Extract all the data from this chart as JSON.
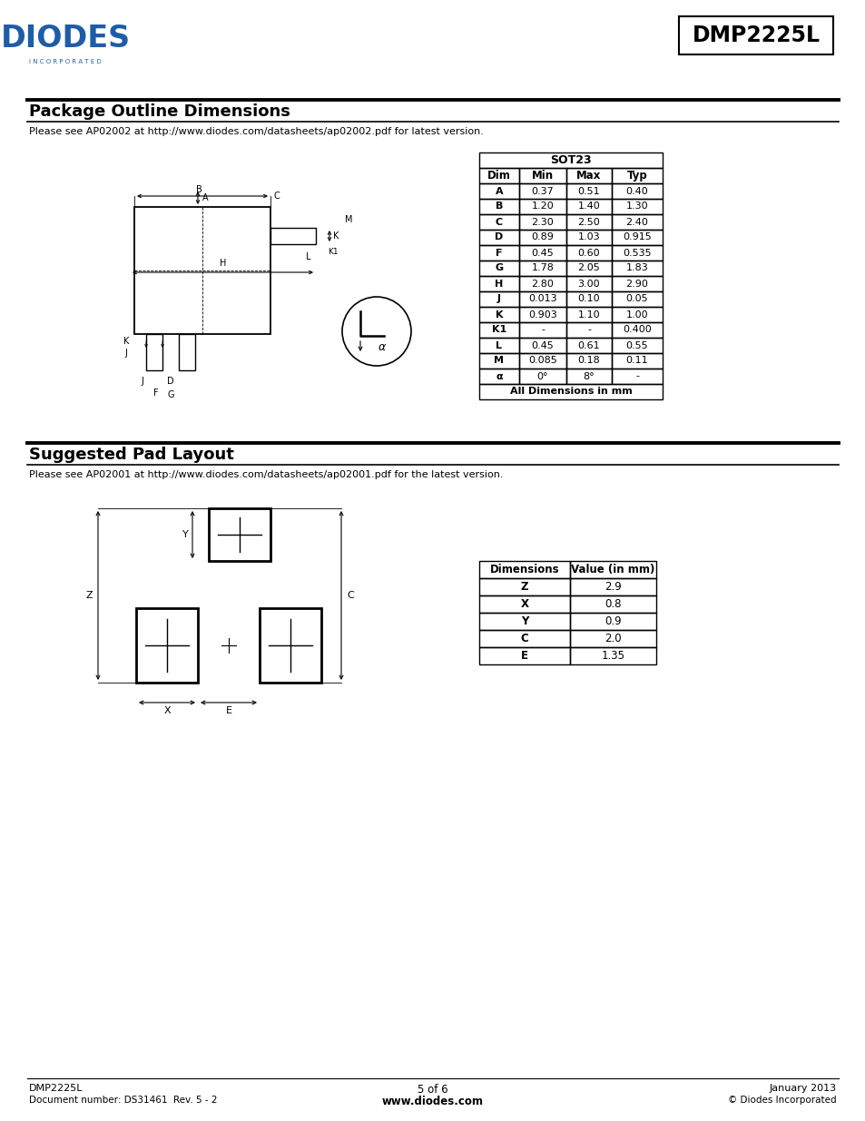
{
  "page_width": 9.54,
  "page_height": 12.35,
  "bg_color": "#ffffff",
  "logo_text": "DIODES",
  "logo_sub": "I N C O R P O R A T E D",
  "logo_color": "#1f5ca8",
  "part_number": "DMP2225L",
  "section1_title": "Package Outline Dimensions",
  "section1_ref": "Please see AP02002 at http://www.diodes.com/datasheets/ap02002.pdf for latest version.",
  "section2_title": "Suggested Pad Layout",
  "section2_ref": "Please see AP02001 at http://www.diodes.com/datasheets/ap02001.pdf for the latest version.",
  "sot23_table_title": "SOT23",
  "sot23_headers": [
    "Dim",
    "Min",
    "Max",
    "Typ"
  ],
  "sot23_rows": [
    [
      "A",
      "0.37",
      "0.51",
      "0.40"
    ],
    [
      "B",
      "1.20",
      "1.40",
      "1.30"
    ],
    [
      "C",
      "2.30",
      "2.50",
      "2.40"
    ],
    [
      "D",
      "0.89",
      "1.03",
      "0.915"
    ],
    [
      "F",
      "0.45",
      "0.60",
      "0.535"
    ],
    [
      "G",
      "1.78",
      "2.05",
      "1.83"
    ],
    [
      "H",
      "2.80",
      "3.00",
      "2.90"
    ],
    [
      "J",
      "0.013",
      "0.10",
      "0.05"
    ],
    [
      "K",
      "0.903",
      "1.10",
      "1.00"
    ],
    [
      "K1",
      "-",
      "-",
      "0.400"
    ],
    [
      "L",
      "0.45",
      "0.61",
      "0.55"
    ],
    [
      "M",
      "0.085",
      "0.18",
      "0.11"
    ],
    [
      "α",
      "0°",
      "8°",
      "-"
    ]
  ],
  "sot23_footer": "All Dimensions in mm",
  "pad_table_headers": [
    "Dimensions",
    "Value (in mm)"
  ],
  "pad_table_rows": [
    [
      "Z",
      "2.9"
    ],
    [
      "X",
      "0.8"
    ],
    [
      "Y",
      "0.9"
    ],
    [
      "C",
      "2.0"
    ],
    [
      "E",
      "1.35"
    ]
  ],
  "footer_left1": "DMP2225L",
  "footer_left2": "Document number: DS31461  Rev. 5 - 2",
  "footer_center1": "5 of 6",
  "footer_center2": "www.diodes.com",
  "footer_right1": "January 2013",
  "footer_right2": "© Diodes Incorporated"
}
